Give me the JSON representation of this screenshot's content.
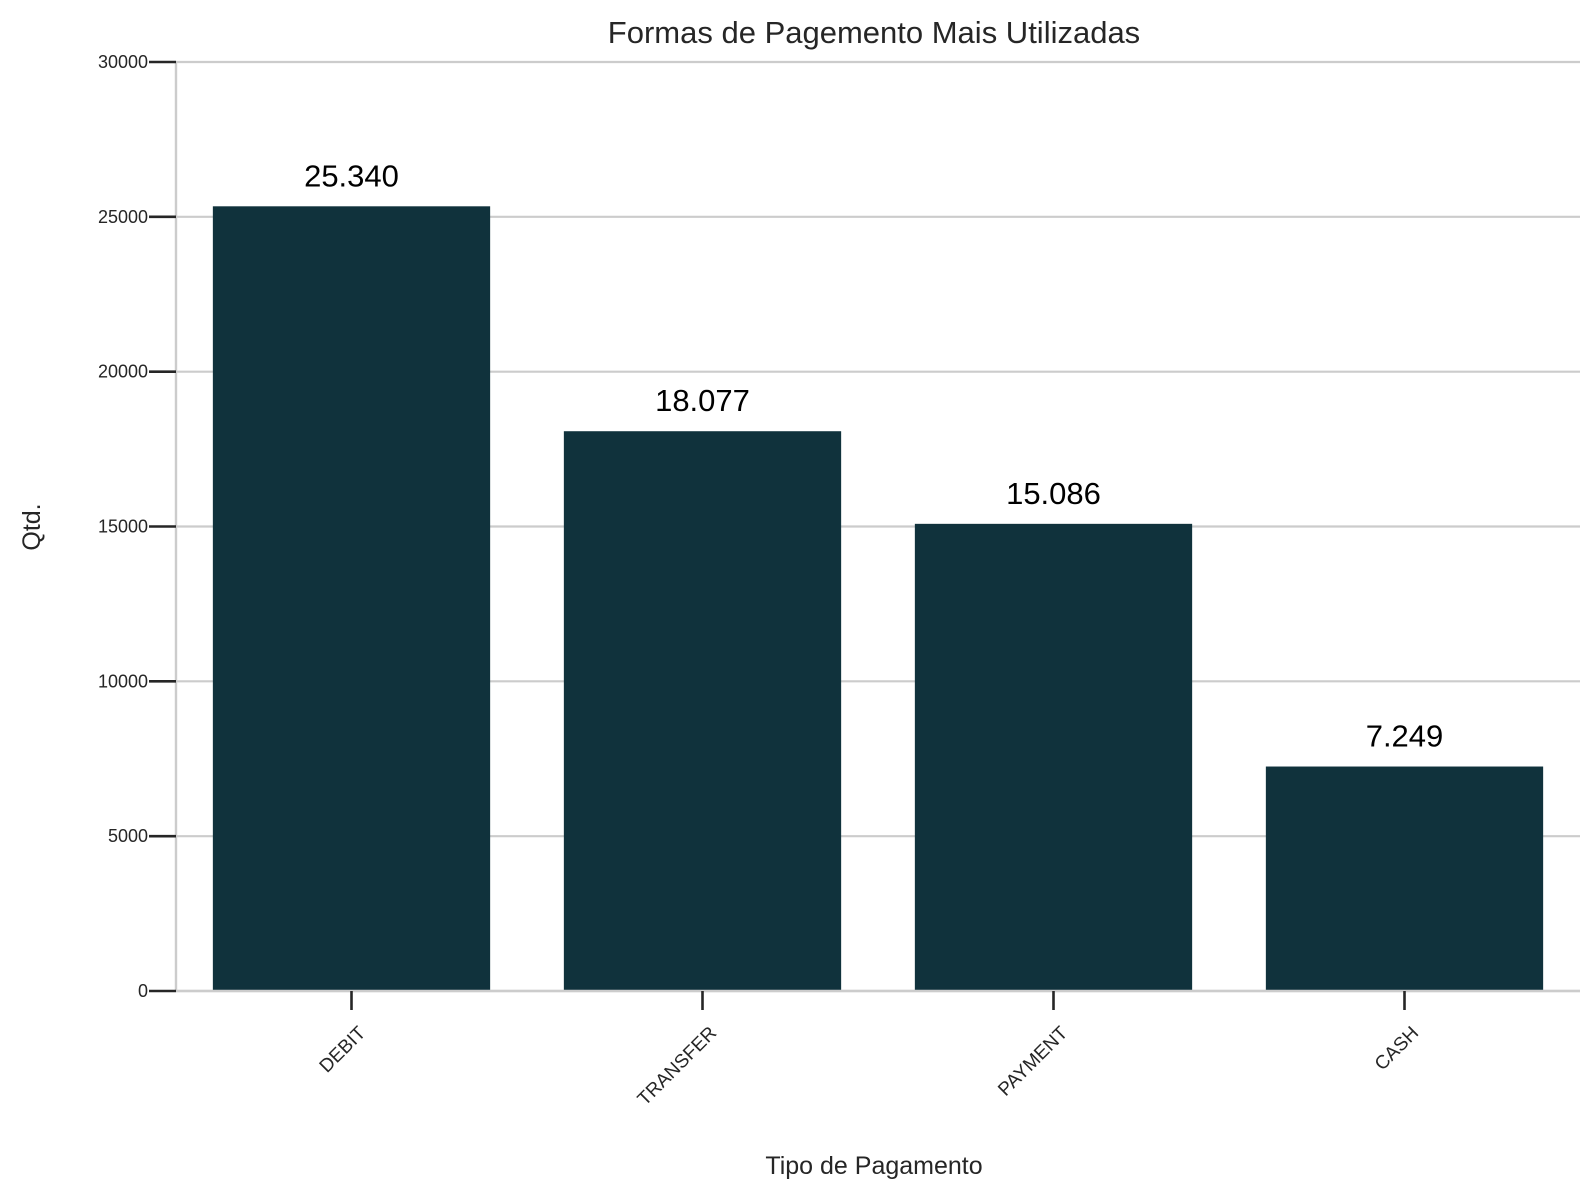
{
  "chart_data": {
    "type": "bar",
    "title": "Formas de Pagemento Mais Utilizadas",
    "xlabel": "Tipo de Pagamento",
    "ylabel": "Qtd.",
    "categories": [
      "DEBIT",
      "TRANSFER",
      "PAYMENT",
      "CASH"
    ],
    "values": [
      25340,
      18077,
      15086,
      7249
    ],
    "data_labels": [
      "25.340",
      "18.077",
      "15.086",
      "7.249"
    ],
    "ylim": [
      0,
      30000
    ],
    "yticks": [
      0,
      5000,
      10000,
      15000,
      20000,
      25000,
      30000
    ],
    "ytick_labels": [
      "0",
      "5000",
      "10000",
      "15000",
      "20000",
      "25000",
      "30000"
    ],
    "grid": "y",
    "legend": "none",
    "bar_color": "#10323c",
    "grid_color": "#cccccc",
    "tick_color": "#262626"
  }
}
